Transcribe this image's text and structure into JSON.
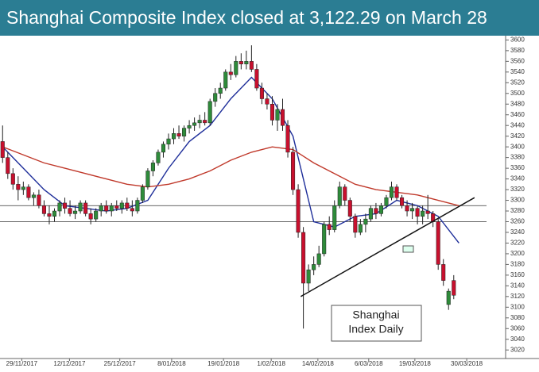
{
  "chart_data": {
    "type": "candlestick",
    "title": "Shanghai Composite Index closed at 3,122.29 on March 28",
    "annotation": [
      "Shanghai",
      "Index Daily"
    ],
    "x": [
      0,
      1,
      2,
      3,
      4,
      5,
      6,
      7,
      8,
      9,
      10,
      11,
      12,
      13,
      14,
      15,
      16,
      17,
      18,
      19,
      20,
      21,
      22,
      23,
      24,
      25,
      26,
      27,
      28,
      29,
      30,
      31,
      32,
      33,
      34,
      35,
      36,
      37,
      38,
      39,
      40,
      41,
      42,
      43,
      44,
      45,
      46,
      47,
      48,
      49,
      50,
      51,
      52,
      53,
      54,
      55,
      56,
      57,
      58,
      59,
      60,
      61,
      62,
      63,
      64,
      65,
      66,
      67,
      68,
      69,
      70,
      71,
      72,
      73,
      74,
      75,
      76,
      77,
      78,
      79,
      80,
      81,
      82,
      83,
      84,
      85,
      86,
      87
    ],
    "open": [
      3410,
      3380,
      3350,
      3330,
      3320,
      3325,
      3305,
      3310,
      3290,
      3275,
      3270,
      3280,
      3295,
      3285,
      3275,
      3280,
      3295,
      3275,
      3265,
      3280,
      3290,
      3280,
      3290,
      3285,
      3295,
      3285,
      3280,
      3300,
      3325,
      3355,
      3370,
      3390,
      3405,
      3415,
      3425,
      3420,
      3435,
      3440,
      3445,
      3450,
      3445,
      3485,
      3500,
      3510,
      3540,
      3535,
      3560,
      3555,
      3560,
      3545,
      3510,
      3490,
      3480,
      3450,
      3470,
      3440,
      3390,
      3320,
      3240,
      3145,
      3170,
      3180,
      3200,
      3255,
      3245,
      3290,
      3325,
      3300,
      3270,
      3240,
      3255,
      3265,
      3285,
      3275,
      3290,
      3305,
      3325,
      3305,
      3290,
      3280,
      3285,
      3270,
      3280,
      3275,
      3260,
      3180,
      3105,
      3150
    ],
    "high": [
      3440,
      3390,
      3360,
      3345,
      3335,
      3330,
      3315,
      3320,
      3300,
      3290,
      3285,
      3300,
      3305,
      3300,
      3290,
      3300,
      3300,
      3285,
      3285,
      3295,
      3300,
      3295,
      3300,
      3300,
      3305,
      3300,
      3305,
      3330,
      3360,
      3375,
      3395,
      3410,
      3425,
      3435,
      3440,
      3440,
      3450,
      3455,
      3460,
      3465,
      3490,
      3510,
      3520,
      3545,
      3555,
      3570,
      3575,
      3580,
      3590,
      3555,
      3520,
      3500,
      3495,
      3480,
      3490,
      3450,
      3400,
      3330,
      3250,
      3180,
      3195,
      3215,
      3260,
      3270,
      3300,
      3335,
      3330,
      3305,
      3275,
      3265,
      3275,
      3290,
      3295,
      3295,
      3310,
      3335,
      3330,
      3310,
      3300,
      3295,
      3290,
      3290,
      3310,
      3280,
      3265,
      3190,
      3135,
      3160
    ],
    "low": [
      3370,
      3340,
      3320,
      3300,
      3310,
      3300,
      3290,
      3285,
      3270,
      3255,
      3260,
      3270,
      3275,
      3270,
      3265,
      3275,
      3270,
      3255,
      3260,
      3270,
      3275,
      3270,
      3280,
      3275,
      3280,
      3270,
      3275,
      3295,
      3320,
      3345,
      3365,
      3380,
      3395,
      3405,
      3415,
      3410,
      3425,
      3430,
      3435,
      3440,
      3440,
      3475,
      3490,
      3505,
      3525,
      3530,
      3545,
      3545,
      3540,
      3505,
      3480,
      3470,
      3440,
      3430,
      3430,
      3380,
      3310,
      3230,
      3060,
      3130,
      3160,
      3175,
      3195,
      3235,
      3240,
      3285,
      3290,
      3260,
      3230,
      3235,
      3240,
      3260,
      3265,
      3270,
      3285,
      3300,
      3300,
      3285,
      3270,
      3265,
      3255,
      3255,
      3265,
      3250,
      3170,
      3140,
      3095,
      3115
    ],
    "close": [
      3380,
      3350,
      3330,
      3320,
      3325,
      3305,
      3310,
      3290,
      3275,
      3270,
      3280,
      3295,
      3285,
      3275,
      3280,
      3295,
      3275,
      3265,
      3280,
      3290,
      3280,
      3290,
      3285,
      3295,
      3285,
      3280,
      3300,
      3325,
      3355,
      3370,
      3390,
      3405,
      3415,
      3425,
      3420,
      3435,
      3440,
      3445,
      3450,
      3445,
      3485,
      3500,
      3510,
      3540,
      3535,
      3560,
      3555,
      3560,
      3545,
      3510,
      3490,
      3480,
      3450,
      3470,
      3440,
      3390,
      3320,
      3240,
      3145,
      3170,
      3180,
      3200,
      3255,
      3245,
      3290,
      3325,
      3300,
      3270,
      3240,
      3255,
      3265,
      3285,
      3275,
      3290,
      3305,
      3325,
      3305,
      3290,
      3280,
      3285,
      3270,
      3280,
      3275,
      3260,
      3180,
      3150,
      3130,
      3122.29
    ],
    "up_color": "#2e8b3a",
    "down_color": "#c8102e",
    "overlays": [
      {
        "color": "#1f2f9a",
        "x": [
          0,
          4,
          8,
          12,
          16,
          20,
          24,
          28,
          32,
          36,
          40,
          44,
          48,
          52,
          56,
          60,
          64,
          68,
          72,
          76,
          80,
          84,
          88
        ],
        "values": [
          3400,
          3360,
          3320,
          3290,
          3285,
          3280,
          3285,
          3300,
          3360,
          3410,
          3440,
          3490,
          3530,
          3490,
          3420,
          3260,
          3250,
          3270,
          3275,
          3300,
          3290,
          3270,
          3220
        ]
      },
      {
        "color": "#c0392b",
        "x": [
          0,
          4,
          8,
          12,
          16,
          20,
          24,
          28,
          32,
          36,
          40,
          44,
          48,
          52,
          56,
          60,
          64,
          68,
          72,
          76,
          80,
          84,
          88
        ],
        "values": [
          3400,
          3385,
          3370,
          3360,
          3350,
          3340,
          3330,
          3325,
          3330,
          3340,
          3355,
          3375,
          3390,
          3400,
          3395,
          3370,
          3350,
          3330,
          3320,
          3315,
          3310,
          3300,
          3290
        ]
      }
    ],
    "hlines": [
      3290,
      3260
    ],
    "trendline": {
      "x": [
        57.5,
        91
      ],
      "y": [
        3120,
        3305
      ]
    },
    "xlim": [
      -0.5,
      97
    ],
    "ylim": [
      3004,
      3608
    ],
    "xticks": [
      {
        "value": 3.7,
        "label": "29/11/2017"
      },
      {
        "value": 12.9,
        "label": "12/12/2017"
      },
      {
        "value": 22.6,
        "label": "25/12/2017"
      },
      {
        "value": 32.6,
        "label": "8/01/2018"
      },
      {
        "value": 42.6,
        "label": "19/01/2018"
      },
      {
        "value": 51.8,
        "label": "1/02/2018"
      },
      {
        "value": 60.8,
        "label": "14/02/2018"
      },
      {
        "value": 70.6,
        "label": "6/03/2018"
      },
      {
        "value": 79.5,
        "label": "19/03/2018"
      },
      {
        "value": 89.5,
        "label": "30/03/2018"
      }
    ],
    "yticks": [
      3020,
      3040,
      3060,
      3080,
      3100,
      3120,
      3140,
      3160,
      3180,
      3200,
      3220,
      3240,
      3260,
      3280,
      3300,
      3320,
      3340,
      3360,
      3380,
      3400,
      3420,
      3440,
      3460,
      3480,
      3500,
      3520,
      3540,
      3560,
      3580,
      3600
    ]
  }
}
